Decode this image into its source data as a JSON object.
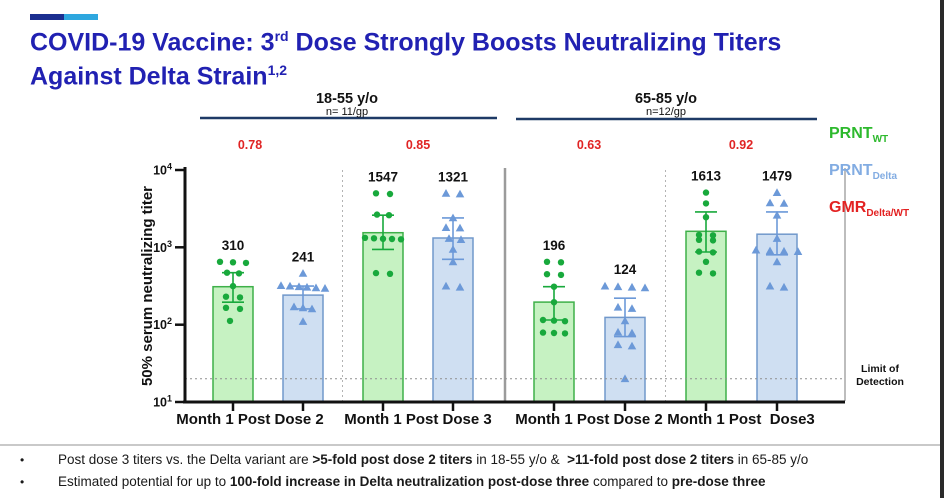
{
  "header": {
    "title": {
      "part1": "COVID-19 Vaccine: 3",
      "sup1": "rd",
      "part2": " Dose Strongly Boosts Neutralizing Titers",
      "line2": "Against Delta Strain",
      "sup2": "1,2"
    },
    "accent_dark": "#1b2f90",
    "accent_light": "#2ea7df"
  },
  "legend": [
    {
      "name": "PRNT",
      "sub": "WT",
      "color": "#2db92d"
    },
    {
      "name": "PRNT",
      "sub": "Delta",
      "color": "#82ace2"
    },
    {
      "name": "GMR",
      "sub": "Delta/WT",
      "color": "#e32222"
    }
  ],
  "chart_data": {
    "type": "bar",
    "yscale": "log",
    "ylabel": "50% serum neutralizing titer",
    "ylim": [
      10,
      10000
    ],
    "ytick_exponents": [
      1,
      2,
      3,
      4
    ],
    "grid": false,
    "limit_of_detection": {
      "value": 20,
      "label_line1": "Limit of",
      "label_line2": "Detection"
    },
    "gmr_color": "#e02424",
    "bracket_color": "#1e3a66",
    "groups": [
      {
        "label": "18-55 y/o",
        "n_label": "n= 11/gp",
        "gmr_labels": [
          "0.78",
          "0.85"
        ]
      },
      {
        "label": "65-85 y/o",
        "n_label": "n=12/gp",
        "gmr_labels": [
          "0.63",
          "0.92"
        ]
      }
    ],
    "categories": [
      "Month 1 Post Dose 2",
      "Month 1 Post Dose 3",
      "Month 1 Post Dose 2",
      "Month 1 Post  Dose3"
    ],
    "series_styles": {
      "WT": {
        "fill": "#c6f2c2",
        "stroke": "#3eb049",
        "point": "#18a93c",
        "shape": "circle"
      },
      "Delta": {
        "fill": "#cfdff2",
        "stroke": "#7198cb",
        "point": "#6c99d8",
        "shape": "triangle"
      }
    },
    "bars": [
      {
        "series": "WT",
        "gmt": 310,
        "label": "310",
        "ci": [
          195,
          470
        ],
        "points": [
          [
            650,
            -13
          ],
          [
            640,
            0
          ],
          [
            630,
            13
          ],
          [
            470,
            -6
          ],
          [
            460,
            6
          ],
          [
            315,
            0
          ],
          [
            230,
            -7
          ],
          [
            225,
            7
          ],
          [
            165,
            -7
          ],
          [
            160,
            7
          ],
          [
            112,
            -3
          ]
        ]
      },
      {
        "series": "Delta",
        "gmt": 241,
        "label": "241",
        "ci": [
          160,
          315
        ],
        "points": [
          [
            460,
            0
          ],
          [
            320,
            -22
          ],
          [
            315,
            -13
          ],
          [
            310,
            -4
          ],
          [
            305,
            4
          ],
          [
            300,
            13
          ],
          [
            295,
            22
          ],
          [
            170,
            -9
          ],
          [
            165,
            0
          ],
          [
            160,
            9
          ],
          [
            110,
            0
          ]
        ]
      },
      {
        "series": "WT",
        "gmt": 1547,
        "label": "1547",
        "ci": [
          940,
          2600
        ],
        "points": [
          [
            5000,
            -7
          ],
          [
            4900,
            7
          ],
          [
            2650,
            -6
          ],
          [
            2600,
            6
          ],
          [
            1330,
            -18
          ],
          [
            1310,
            -9
          ],
          [
            1290,
            0
          ],
          [
            1280,
            9
          ],
          [
            1270,
            18
          ],
          [
            465,
            -7
          ],
          [
            455,
            7
          ]
        ]
      },
      {
        "series": "Delta",
        "gmt": 1321,
        "label": "1321",
        "ci": [
          700,
          2400
        ],
        "points": [
          [
            5000,
            -7
          ],
          [
            4900,
            7
          ],
          [
            2400,
            0
          ],
          [
            1800,
            -7
          ],
          [
            1780,
            7
          ],
          [
            1300,
            -4
          ],
          [
            1260,
            8
          ],
          [
            940,
            0
          ],
          [
            650,
            0
          ],
          [
            315,
            -7
          ],
          [
            305,
            7
          ]
        ]
      },
      {
        "series": "WT",
        "gmt": 196,
        "label": "196",
        "ci": [
          115,
          310
        ],
        "points": [
          [
            650,
            -7
          ],
          [
            640,
            7
          ],
          [
            450,
            -7
          ],
          [
            440,
            7
          ],
          [
            310,
            0
          ],
          [
            195,
            0
          ],
          [
            115,
            -11
          ],
          [
            113,
            0
          ],
          [
            111,
            11
          ],
          [
            79,
            -11
          ],
          [
            78,
            0
          ],
          [
            77,
            11
          ]
        ]
      },
      {
        "series": "Delta",
        "gmt": 124,
        "label": "124",
        "ci": [
          70,
          220
        ],
        "points": [
          [
            315,
            -20
          ],
          [
            310,
            -7
          ],
          [
            305,
            7
          ],
          [
            300,
            20
          ],
          [
            168,
            -7
          ],
          [
            162,
            7
          ],
          [
            112,
            0
          ],
          [
            80,
            -7
          ],
          [
            78,
            7
          ],
          [
            55,
            -7
          ],
          [
            53,
            7
          ],
          [
            20,
            0
          ]
        ]
      },
      {
        "series": "WT",
        "gmt": 1613,
        "label": "1613",
        "ci": [
          870,
          2870
        ],
        "points": [
          [
            5100,
            0
          ],
          [
            3700,
            0
          ],
          [
            2450,
            0
          ],
          [
            1450,
            -7
          ],
          [
            1430,
            7
          ],
          [
            1250,
            -7
          ],
          [
            1230,
            7
          ],
          [
            880,
            -7
          ],
          [
            860,
            7
          ],
          [
            650,
            0
          ],
          [
            470,
            -7
          ],
          [
            460,
            7
          ]
        ]
      },
      {
        "series": "Delta",
        "gmt": 1479,
        "label": "1479",
        "ci": [
          800,
          2870
        ],
        "points": [
          [
            5100,
            0
          ],
          [
            3750,
            -7
          ],
          [
            3700,
            7
          ],
          [
            2600,
            0
          ],
          [
            1300,
            0
          ],
          [
            920,
            -21
          ],
          [
            900,
            -7
          ],
          [
            890,
            7
          ],
          [
            880,
            21
          ],
          [
            650,
            0
          ],
          [
            315,
            -7
          ],
          [
            305,
            7
          ]
        ]
      }
    ]
  },
  "footer": {
    "bullet_char": "•",
    "bullets": [
      [
        {
          "t": "Post dose 3 titers vs. the Delta variant are ",
          "b": false
        },
        {
          "t": ">5-fold post dose 2 titers",
          "b": true
        },
        {
          "t": " in 18-55 y/o &  ",
          "b": false
        },
        {
          "t": ">11-fold post dose 2 titers",
          "b": true
        },
        {
          "t": " in 65-85 y/o",
          "b": false
        }
      ],
      [
        {
          "t": "Estimated potential for up to ",
          "b": false
        },
        {
          "t": "100-fold increase in Delta neutralization post-dose three",
          "b": true
        },
        {
          "t": " compared to ",
          "b": false
        },
        {
          "t": "pre-dose three",
          "b": true
        }
      ]
    ]
  }
}
